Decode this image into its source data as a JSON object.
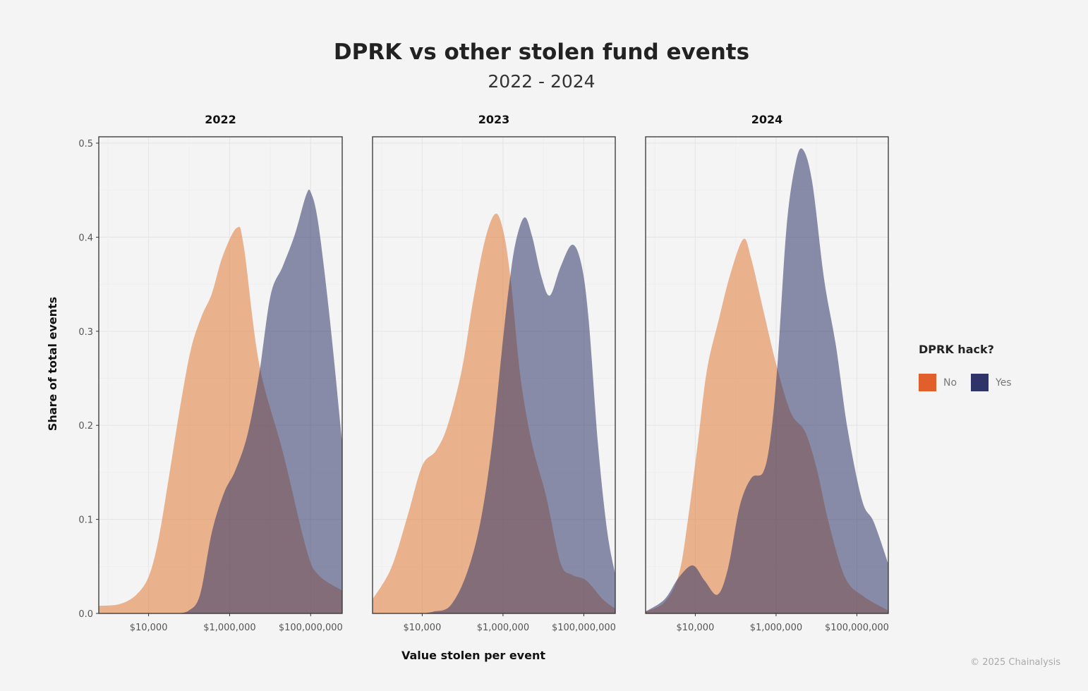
{
  "title": "DPRK vs other stolen fund events",
  "subtitle": "2022 - 2024",
  "legend": {
    "title": "DPRK hack?",
    "items": [
      {
        "label": "No",
        "color": "#E05F2A"
      },
      {
        "label": "Yes",
        "color": "#2E3467"
      }
    ]
  },
  "copyright": "© 2025 Chainalysis",
  "chart_data": {
    "type": "area",
    "subtype": "density, faceted",
    "xlabel": "Value stolen per event",
    "ylabel": "Share of total events",
    "x_scale": "log10",
    "xlim": [
      590,
      600000000
    ],
    "x_ticks": [
      10000,
      1000000,
      100000000
    ],
    "x_tick_labels": [
      "$10,000",
      "$1,000,000",
      "$100,000,000"
    ],
    "ylim": [
      0,
      0.507
    ],
    "y_ticks": [
      0,
      0.1,
      0.2,
      0.3,
      0.4,
      0.5
    ],
    "y_tick_labels": [
      "0.0",
      "0.1",
      "0.2",
      "0.3",
      "0.4",
      "0.5"
    ],
    "grid": true,
    "legend_position": "right",
    "fill_alpha": 0.55,
    "panels": [
      {
        "label": "2022",
        "series": [
          {
            "name": "No",
            "color": "#E07B39",
            "x_log10": [
              2.77,
              3.29,
              3.7,
              4.01,
              4.25,
              4.52,
              4.78,
              5.04,
              5.3,
              5.56,
              5.83,
              6.18,
              6.35,
              6.73,
              7.31,
              7.89,
              8.19,
              8.79
            ],
            "y": [
              0.008,
              0.01,
              0.02,
              0.04,
              0.08,
              0.15,
              0.22,
              0.28,
              0.315,
              0.34,
              0.38,
              0.41,
              0.39,
              0.265,
              0.172,
              0.069,
              0.041,
              0.024
            ]
          },
          {
            "name": "Yes",
            "color": "#2E3467",
            "x_log10": [
              4.69,
              4.99,
              5.27,
              5.56,
              5.86,
              6.14,
              6.44,
              6.73,
              7.01,
              7.31,
              7.61,
              7.89,
              8.01,
              8.19,
              8.48,
              8.79
            ],
            "y": [
              0,
              0.003,
              0.02,
              0.086,
              0.128,
              0.152,
              0.19,
              0.255,
              0.338,
              0.369,
              0.403,
              0.445,
              0.447,
              0.414,
              0.31,
              0.175
            ]
          }
        ]
      },
      {
        "label": "2023",
        "series": [
          {
            "name": "No",
            "color": "#E07B39",
            "x_log10": [
              2.77,
              3.23,
              3.64,
              4.0,
              4.34,
              4.63,
              4.98,
              5.27,
              5.56,
              5.82,
              6.02,
              6.2,
              6.43,
              6.72,
              7.07,
              7.42,
              7.71,
              8.06,
              8.47,
              8.78
            ],
            "y": [
              0.015,
              0.048,
              0.104,
              0.157,
              0.173,
              0.2,
              0.259,
              0.335,
              0.398,
              0.425,
              0.404,
              0.351,
              0.252,
              0.18,
              0.124,
              0.054,
              0.041,
              0.035,
              0.015,
              0.005
            ]
          },
          {
            "name": "Yes",
            "color": "#2E3467",
            "x_log10": [
              4.0,
              4.28,
              4.69,
              5.09,
              5.44,
              5.73,
              5.97,
              6.14,
              6.31,
              6.53,
              6.72,
              6.95,
              7.16,
              7.42,
              7.71,
              7.94,
              8.12,
              8.35,
              8.58,
              8.78
            ],
            "y": [
              0,
              0.002,
              0.008,
              0.041,
              0.097,
              0.18,
              0.279,
              0.345,
              0.394,
              0.421,
              0.401,
              0.358,
              0.338,
              0.368,
              0.392,
              0.371,
              0.312,
              0.18,
              0.087,
              0.041
            ]
          }
        ]
      },
      {
        "label": "2024",
        "series": [
          {
            "name": "No",
            "color": "#E07B39",
            "x_log10": [
              2.77,
              3.24,
              3.59,
              3.81,
              4.06,
              4.29,
              4.58,
              4.87,
              5.19,
              5.38,
              5.67,
              6.02,
              6.37,
              6.72,
              7.01,
              7.3,
              7.71,
              8.17,
              8.78
            ],
            "y": [
              0.002,
              0.012,
              0.041,
              0.097,
              0.18,
              0.259,
              0.312,
              0.361,
              0.398,
              0.378,
              0.325,
              0.262,
              0.213,
              0.193,
              0.153,
              0.097,
              0.038,
              0.018,
              0.003
            ]
          },
          {
            "name": "Yes",
            "color": "#2E3467",
            "x_log10": [
              2.77,
              3.24,
              3.59,
              3.94,
              4.23,
              4.55,
              4.81,
              5.1,
              5.39,
              5.68,
              5.86,
              6.03,
              6.26,
              6.49,
              6.67,
              6.9,
              7.19,
              7.48,
              7.77,
              8.13,
              8.42,
              8.79
            ],
            "y": [
              0.002,
              0.015,
              0.038,
              0.051,
              0.035,
              0.02,
              0.048,
              0.114,
              0.144,
              0.15,
              0.186,
              0.262,
              0.411,
              0.48,
              0.493,
              0.457,
              0.355,
              0.285,
              0.196,
              0.12,
              0.097,
              0.051
            ]
          }
        ]
      }
    ]
  }
}
